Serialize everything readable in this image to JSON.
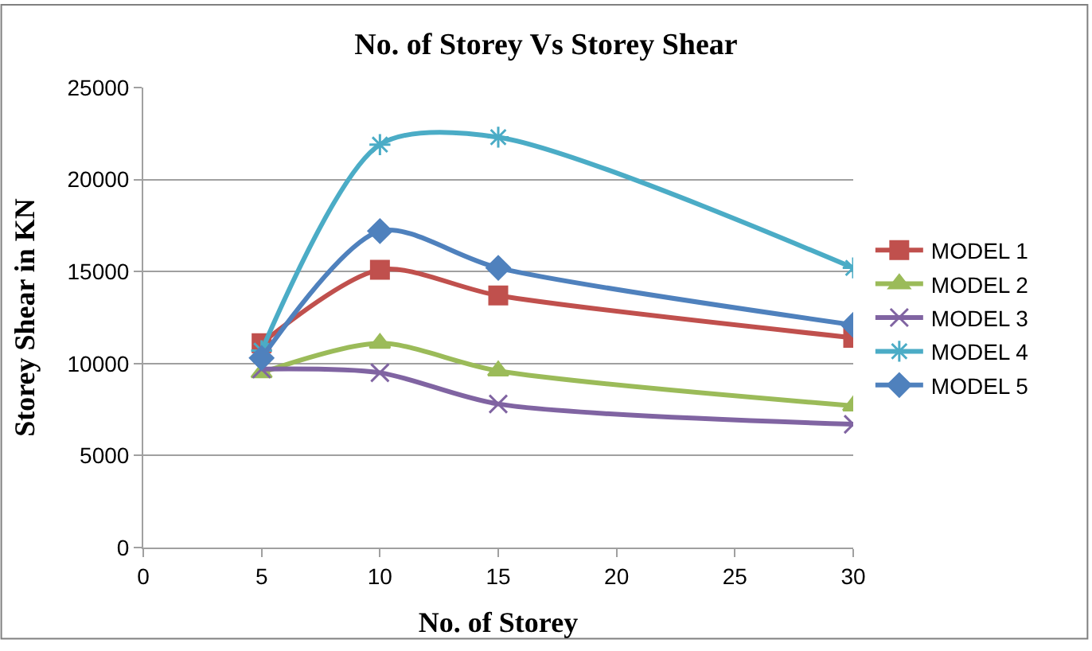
{
  "chart_data": {
    "type": "line",
    "title": "No. of Storey Vs Storey Shear",
    "xlabel": "No. of Storey",
    "ylabel": "Storey Shear in KN",
    "x": [
      5,
      10,
      15,
      30
    ],
    "series": [
      {
        "name": "MODEL 1",
        "color": "#c0504d",
        "marker": "square",
        "values": [
          11100,
          15100,
          13700,
          11400
        ]
      },
      {
        "name": "MODEL 2",
        "color": "#9bbb59",
        "marker": "triangle",
        "values": [
          9500,
          11100,
          9600,
          7700
        ]
      },
      {
        "name": "MODEL 3",
        "color": "#8064a2",
        "marker": "cross",
        "values": [
          9700,
          9500,
          7800,
          6700
        ]
      },
      {
        "name": "MODEL 4",
        "color": "#4bacc6",
        "marker": "cross",
        "values": [
          10700,
          21900,
          22300,
          15200
        ]
      },
      {
        "name": "MODEL 5",
        "color": "#4f81bd",
        "marker": "diamond",
        "values": [
          10300,
          17200,
          15200,
          12100
        ]
      }
    ],
    "xlim": [
      0,
      30
    ],
    "xticks": [
      0,
      5,
      10,
      15,
      20,
      25,
      30
    ],
    "ylim": [
      0,
      25000
    ],
    "yticks": [
      0,
      5000,
      10000,
      15000,
      20000,
      25000
    ],
    "grid": "y",
    "legend": "right",
    "line_style": "solid"
  }
}
